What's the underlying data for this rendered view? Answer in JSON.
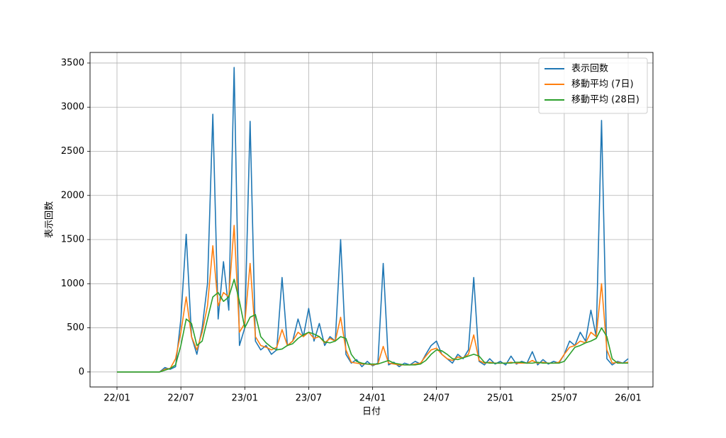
{
  "chart_data": {
    "type": "line",
    "xlabel": "日付",
    "ylabel": "表示回数",
    "x": [
      0,
      0.5,
      1,
      1.5,
      2,
      2.5,
      3,
      3.5,
      4,
      4.5,
      5,
      5.5,
      6,
      6.5,
      7,
      7.5,
      8,
      8.5,
      9,
      9.5,
      10,
      10.5,
      11,
      11.5,
      12,
      12.5,
      13,
      13.5,
      14,
      14.5,
      15,
      15.5,
      16,
      16.5,
      17,
      17.5,
      18,
      18.5,
      19,
      19.5,
      20,
      20.5,
      21,
      21.5,
      22,
      22.5,
      23,
      23.5,
      24,
      24.5,
      25,
      25.5,
      26,
      26.5,
      27,
      27.5,
      28,
      28.5,
      29,
      29.5,
      30,
      30.5,
      31,
      31.5,
      32,
      32.5,
      33,
      33.5,
      34,
      34.5,
      35,
      35.5,
      36,
      36.5,
      37,
      37.5,
      38,
      38.5,
      39,
      39.5,
      40,
      40.5,
      41,
      41.5,
      42,
      42.5,
      43,
      43.5,
      44,
      44.5,
      45,
      45.5,
      46,
      46.5,
      47,
      47.5,
      48
    ],
    "series": [
      {
        "name": "表示回数",
        "color": "#1f77b4",
        "values": [
          0,
          0,
          0,
          0,
          0,
          0,
          0,
          0,
          0,
          50,
          30,
          60,
          600,
          1560,
          400,
          200,
          500,
          1000,
          2920,
          600,
          1250,
          700,
          3450,
          300,
          500,
          2840,
          350,
          250,
          300,
          200,
          250,
          1070,
          300,
          350,
          600,
          400,
          720,
          350,
          550,
          300,
          400,
          350,
          1500,
          200,
          100,
          140,
          60,
          120,
          70,
          100,
          1230,
          80,
          110,
          60,
          100,
          80,
          120,
          90,
          200,
          300,
          350,
          200,
          150,
          100,
          200,
          150,
          250,
          1070,
          120,
          80,
          150,
          90,
          120,
          80,
          180,
          90,
          120,
          100,
          230,
          80,
          140,
          90,
          120,
          100,
          200,
          350,
          300,
          450,
          350,
          700,
          400,
          2850,
          150,
          80,
          120,
          100,
          150
        ]
      },
      {
        "name": "移動平均 (7日)",
        "color": "#ff7f0e",
        "values": [
          0,
          0,
          0,
          0,
          0,
          0,
          0,
          0,
          0,
          30,
          40,
          150,
          450,
          850,
          400,
          250,
          450,
          750,
          1430,
          750,
          900,
          850,
          1660,
          450,
          550,
          1230,
          400,
          300,
          280,
          250,
          280,
          480,
          300,
          350,
          450,
          400,
          450,
          380,
          400,
          330,
          380,
          350,
          620,
          250,
          110,
          100,
          90,
          90,
          80,
          90,
          290,
          100,
          90,
          80,
          80,
          80,
          90,
          100,
          180,
          250,
          270,
          200,
          150,
          130,
          170,
          160,
          200,
          420,
          130,
          100,
          110,
          100,
          100,
          100,
          110,
          100,
          100,
          100,
          130,
          100,
          110,
          100,
          100,
          110,
          200,
          280,
          300,
          350,
          330,
          450,
          400,
          1000,
          250,
          100,
          110,
          100,
          110
        ]
      },
      {
        "name": "移動平均 (28日)",
        "color": "#2ca02c",
        "values": [
          0,
          0,
          0,
          0,
          0,
          0,
          0,
          0,
          0,
          20,
          40,
          80,
          300,
          600,
          550,
          300,
          350,
          600,
          850,
          900,
          800,
          850,
          1050,
          800,
          500,
          620,
          650,
          400,
          330,
          280,
          250,
          260,
          300,
          320,
          380,
          420,
          450,
          430,
          400,
          340,
          330,
          350,
          400,
          380,
          200,
          120,
          100,
          90,
          90,
          90,
          110,
          130,
          100,
          90,
          80,
          80,
          80,
          90,
          130,
          200,
          250,
          240,
          200,
          150,
          140,
          160,
          180,
          200,
          180,
          110,
          100,
          100,
          100,
          100,
          100,
          110,
          110,
          100,
          100,
          110,
          100,
          100,
          100,
          100,
          120,
          200,
          280,
          300,
          330,
          350,
          380,
          500,
          400,
          150,
          100,
          100,
          100
        ]
      }
    ],
    "xlim": [
      -2.53,
      50.33
    ],
    "xticks": [
      {
        "value": 0,
        "label": "22/01"
      },
      {
        "value": 6,
        "label": "22/07"
      },
      {
        "value": 12,
        "label": "23/01"
      },
      {
        "value": 18,
        "label": "23/07"
      },
      {
        "value": 24,
        "label": "24/01"
      },
      {
        "value": 30,
        "label": "24/07"
      },
      {
        "value": 36,
        "label": "25/01"
      },
      {
        "value": 42,
        "label": "25/07"
      },
      {
        "value": 48,
        "label": "26/01"
      }
    ],
    "ylim": [
      -170,
      3620
    ],
    "yticks": [
      0,
      500,
      1000,
      1500,
      2000,
      2500,
      3000,
      3500
    ],
    "grid": true,
    "legend": "upper right"
  }
}
